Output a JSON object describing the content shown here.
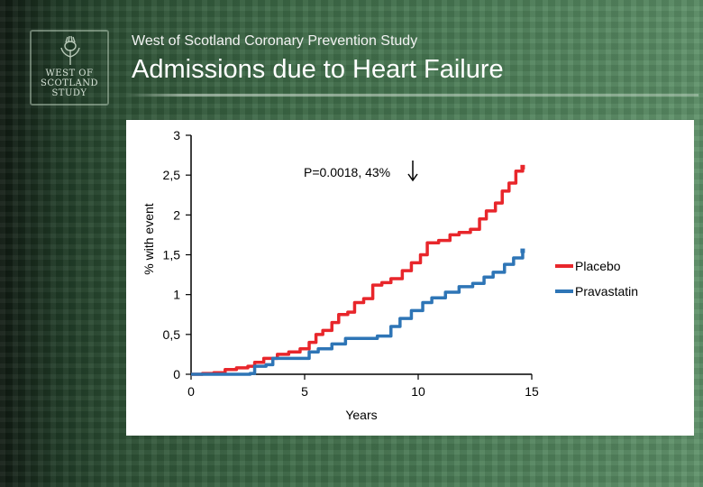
{
  "header": {
    "subtitle": "West of Scotland Coronary Prevention Study",
    "title": "Admissions due to Heart Failure"
  },
  "logo": {
    "lines": [
      "WEST OF",
      "SCOTLAND",
      "STUDY"
    ],
    "icon": "thistle-icon"
  },
  "chart_data": {
    "type": "line",
    "title": "",
    "xlabel": "Years",
    "ylabel": "% with event",
    "xlim": [
      0,
      15
    ],
    "ylim": [
      0,
      3
    ],
    "x_ticks": [
      0,
      5,
      10,
      15
    ],
    "y_ticks": [
      0,
      0.5,
      1,
      1.5,
      2,
      2.5,
      3
    ],
    "x_tick_labels": [
      "0",
      "5",
      "10",
      "15"
    ],
    "y_tick_labels": [
      "0",
      "0,5",
      "1",
      "1,5",
      "2",
      "2,5",
      "3"
    ],
    "annotation": "P=0.0018,  43%",
    "annotation_icon": "down-arrow-icon",
    "legend_position": "right",
    "grid": false,
    "series": [
      {
        "name": "Placebo",
        "color": "#e8262b",
        "points": [
          [
            0,
            0
          ],
          [
            0.5,
            0.01
          ],
          [
            1,
            0.02
          ],
          [
            1.5,
            0.06
          ],
          [
            2,
            0.08
          ],
          [
            2.5,
            0.1
          ],
          [
            2.8,
            0.15
          ],
          [
            3.2,
            0.2
          ],
          [
            3.8,
            0.25
          ],
          [
            4.3,
            0.28
          ],
          [
            4.8,
            0.32
          ],
          [
            5.2,
            0.4
          ],
          [
            5.5,
            0.5
          ],
          [
            5.8,
            0.55
          ],
          [
            6.2,
            0.65
          ],
          [
            6.5,
            0.75
          ],
          [
            6.9,
            0.78
          ],
          [
            7.2,
            0.9
          ],
          [
            7.6,
            0.95
          ],
          [
            8,
            1.12
          ],
          [
            8.4,
            1.15
          ],
          [
            8.8,
            1.2
          ],
          [
            9.3,
            1.3
          ],
          [
            9.7,
            1.4
          ],
          [
            10.1,
            1.5
          ],
          [
            10.4,
            1.65
          ],
          [
            10.9,
            1.68
          ],
          [
            11.4,
            1.75
          ],
          [
            11.8,
            1.78
          ],
          [
            12.3,
            1.82
          ],
          [
            12.7,
            1.95
          ],
          [
            13,
            2.05
          ],
          [
            13.4,
            2.15
          ],
          [
            13.7,
            2.3
          ],
          [
            14,
            2.4
          ],
          [
            14.3,
            2.55
          ],
          [
            14.6,
            2.6
          ]
        ]
      },
      {
        "name": "Pravastatin",
        "color": "#2e75b6",
        "points": [
          [
            0,
            0
          ],
          [
            1,
            0
          ],
          [
            2,
            0
          ],
          [
            2.6,
            0.01
          ],
          [
            2.8,
            0.1
          ],
          [
            3.3,
            0.12
          ],
          [
            3.6,
            0.2
          ],
          [
            4,
            0.2
          ],
          [
            4.5,
            0.2
          ],
          [
            5,
            0.2
          ],
          [
            5.2,
            0.28
          ],
          [
            5.6,
            0.32
          ],
          [
            6.2,
            0.38
          ],
          [
            6.8,
            0.45
          ],
          [
            7.5,
            0.45
          ],
          [
            8.2,
            0.48
          ],
          [
            8.8,
            0.6
          ],
          [
            9.2,
            0.7
          ],
          [
            9.7,
            0.8
          ],
          [
            10.2,
            0.9
          ],
          [
            10.6,
            0.96
          ],
          [
            11.2,
            1.03
          ],
          [
            11.8,
            1.1
          ],
          [
            12.4,
            1.14
          ],
          [
            12.9,
            1.22
          ],
          [
            13.3,
            1.28
          ],
          [
            13.8,
            1.38
          ],
          [
            14.2,
            1.46
          ],
          [
            14.6,
            1.55
          ]
        ]
      }
    ]
  }
}
